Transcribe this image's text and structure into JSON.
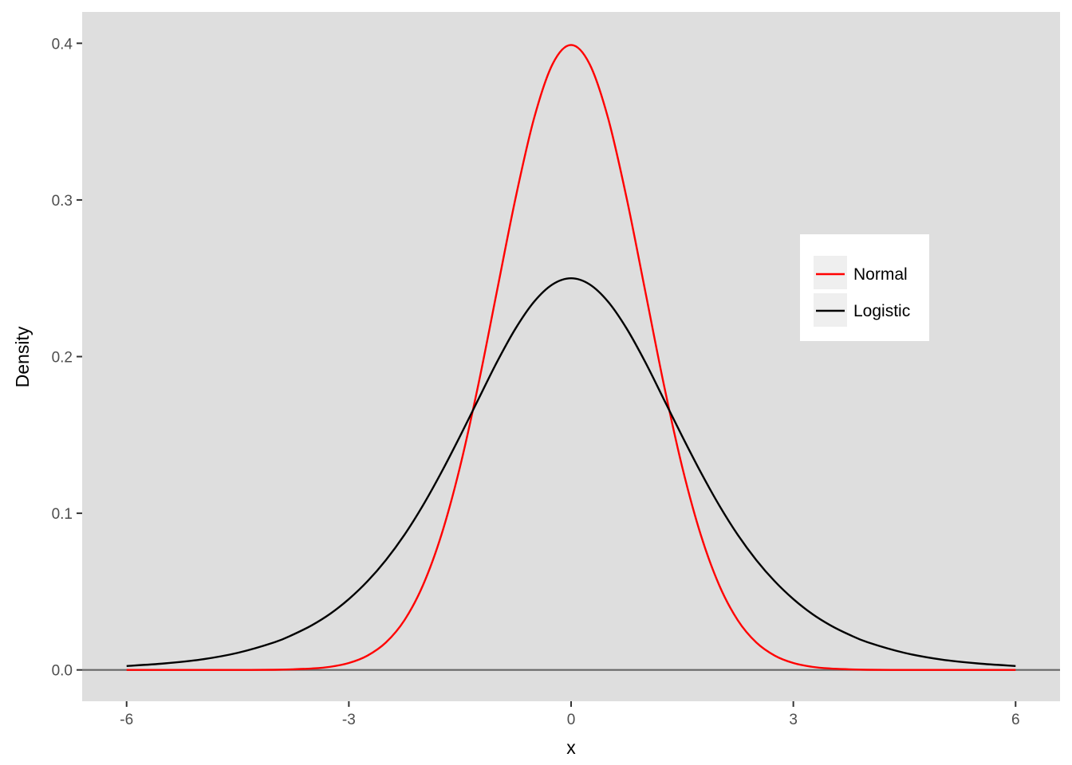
{
  "chart_data": {
    "type": "line",
    "title": "",
    "xlabel": "x",
    "ylabel": "Density",
    "xlim": [
      -6.6,
      6.6
    ],
    "ylim": [
      -0.02,
      0.42
    ],
    "x_ticks": [
      -6,
      -3,
      0,
      3,
      6
    ],
    "x_tick_labels": [
      "-6",
      "-3",
      "0",
      "3",
      "6"
    ],
    "y_ticks": [
      0.0,
      0.1,
      0.2,
      0.3,
      0.4
    ],
    "y_tick_labels": [
      "0.0",
      "0.1",
      "0.2",
      "0.3",
      "0.4"
    ],
    "grid": false,
    "background_color": "#dedede",
    "reference_line": {
      "y": 0,
      "color": "#666666"
    },
    "legend": {
      "position": "right-center inside"
    },
    "series": [
      {
        "name": "Normal",
        "color": "#ff0000",
        "x": [
          -6.0,
          -5.5,
          -5.0,
          -4.5,
          -4.0,
          -3.75,
          -3.5,
          -3.25,
          -3.0,
          -2.75,
          -2.5,
          -2.25,
          -2.0,
          -1.75,
          -1.5,
          -1.25,
          -1.0,
          -0.75,
          -0.5,
          -0.25,
          0.0,
          0.25,
          0.5,
          0.75,
          1.0,
          1.25,
          1.5,
          1.75,
          2.0,
          2.25,
          2.5,
          2.75,
          3.0,
          3.25,
          3.5,
          3.75,
          4.0,
          4.5,
          5.0,
          5.5,
          6.0
        ],
        "y": [
          0.0,
          0.0,
          0.0,
          0.0,
          0.0001,
          0.0004,
          0.0009,
          0.002,
          0.0044,
          0.0091,
          0.0175,
          0.0317,
          0.054,
          0.0863,
          0.1295,
          0.1826,
          0.242,
          0.3011,
          0.3521,
          0.3867,
          0.3989,
          0.3867,
          0.3521,
          0.3011,
          0.242,
          0.1826,
          0.1295,
          0.0863,
          0.054,
          0.0317,
          0.0175,
          0.0091,
          0.0044,
          0.002,
          0.0009,
          0.0004,
          0.0001,
          0.0,
          0.0,
          0.0,
          0.0
        ]
      },
      {
        "name": "Logistic",
        "color": "#000000",
        "x": [
          -6.0,
          -5.5,
          -5.0,
          -4.5,
          -4.0,
          -3.75,
          -3.5,
          -3.25,
          -3.0,
          -2.75,
          -2.5,
          -2.25,
          -2.0,
          -1.75,
          -1.5,
          -1.25,
          -1.0,
          -0.75,
          -0.5,
          -0.25,
          0.0,
          0.25,
          0.5,
          0.75,
          1.0,
          1.25,
          1.5,
          1.75,
          2.0,
          2.25,
          2.5,
          2.75,
          3.0,
          3.25,
          3.5,
          3.75,
          4.0,
          4.5,
          5.0,
          5.5,
          6.0
        ],
        "y": [
          0.0025,
          0.0041,
          0.0066,
          0.0109,
          0.0177,
          0.0226,
          0.0285,
          0.0359,
          0.0452,
          0.0565,
          0.0701,
          0.0862,
          0.105,
          0.1262,
          0.1491,
          0.1729,
          0.1966,
          0.2179,
          0.235,
          0.2461,
          0.25,
          0.2461,
          0.235,
          0.2179,
          0.1966,
          0.1729,
          0.1491,
          0.1262,
          0.105,
          0.0862,
          0.0701,
          0.0565,
          0.0452,
          0.0359,
          0.0285,
          0.0226,
          0.0177,
          0.0109,
          0.0066,
          0.0041,
          0.0025
        ]
      }
    ]
  }
}
